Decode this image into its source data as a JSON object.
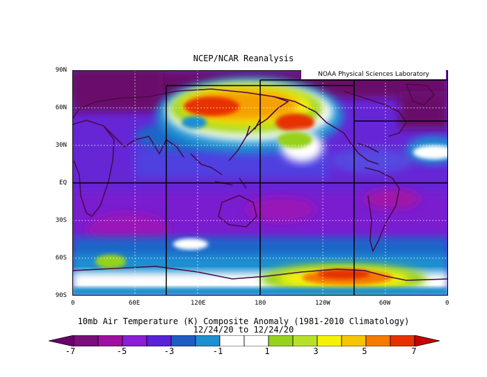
{
  "main_title": "NCEP/NCAR Reanalysis",
  "credit": "NOAA Physical Sciences Laboratory",
  "caption": {
    "line1": "10mb Air Temperature (K) Composite Anomaly (1981-2010 Climatology)",
    "line2": "12/24/20  to 12/24/20"
  },
  "lat_labels": [
    "90N",
    "60N",
    "30N",
    "EQ",
    "30S",
    "60S",
    "90S"
  ],
  "lon_labels": [
    "0",
    "60E",
    "120E",
    "180",
    "120W",
    "60W",
    "0"
  ],
  "colorbar": {
    "labels": [
      "-7",
      "-5",
      "-3",
      "-1",
      "1",
      "3",
      "5",
      "7"
    ],
    "colors": [
      "#7a0e7a",
      "#a010a0",
      "#8a1fd6",
      "#5a22d8",
      "#1f5cc4",
      "#1e8fd0",
      "#ffffff",
      "#ffffff",
      "#96d21e",
      "#b8e02a",
      "#f5f20a",
      "#f5c500",
      "#f57a00",
      "#e63200"
    ],
    "end_low": "#6a006a",
    "end_high": "#c80000"
  },
  "palette": {
    "map_bg": "#6a22d8",
    "land": "#4a0a4a",
    "grid_bold": "#000000",
    "grid_dot": "#ffffff"
  }
}
